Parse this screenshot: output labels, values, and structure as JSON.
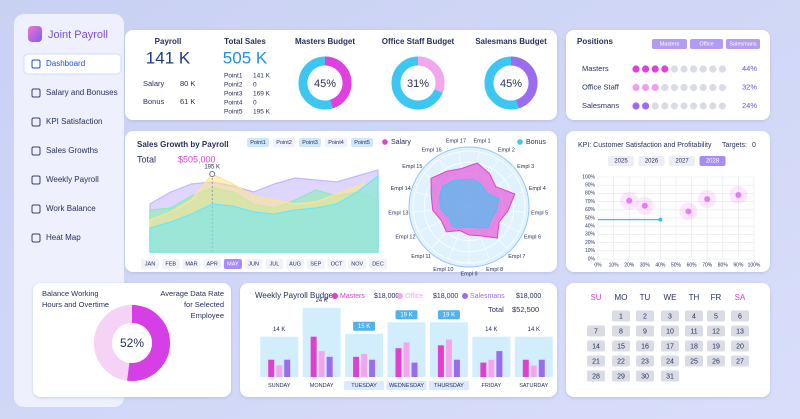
{
  "app": {
    "title": "Joint Payroll"
  },
  "nav": [
    "Dashboard",
    "Salary and Bonuses",
    "KPI Satisfaction",
    "Sales Growths",
    "Weekly Payroll",
    "Work Balance",
    "Heat Map"
  ],
  "summary": {
    "payroll_label": "Payroll",
    "payroll": "141 K",
    "salary_label": "Salary",
    "salary": "80 K",
    "bonus_label": "Bonus",
    "bonus": "61 K",
    "sales_label": "Total Sales",
    "sales": "505 K",
    "points": [
      {
        "label": "Point1",
        "value": "141 K"
      },
      {
        "label": "Point2",
        "value": "0"
      },
      {
        "label": "Point3",
        "value": "169 K"
      },
      {
        "label": "Point4",
        "value": "0"
      },
      {
        "label": "Point5",
        "value": "195 K"
      }
    ]
  },
  "chart_data": [
    {
      "type": "donut",
      "title": "Masters Budget",
      "values": [
        45
      ],
      "value_labels": [
        "45%"
      ],
      "color": "#e23fe0",
      "track_color": "#3cc6f2"
    },
    {
      "type": "donut",
      "title": "Office Staff Budget",
      "values": [
        31
      ],
      "value_labels": [
        "31%"
      ],
      "color": "#f3a6ec",
      "track_color": "#3cc6f2"
    },
    {
      "type": "donut",
      "title": "Salesmans Budget",
      "values": [
        45
      ],
      "value_labels": [
        "45%"
      ],
      "color": "#9b6cf0",
      "track_color": "#3cc6f2"
    },
    {
      "type": "dots",
      "title": "Positions",
      "buttons": [
        "Masters",
        "Office",
        "Salesmans"
      ],
      "categories": [
        "Masters",
        "Office Staff",
        "Salesmans"
      ],
      "values": [
        44,
        32,
        24
      ],
      "value_labels": [
        "44%",
        "32%",
        "24%"
      ],
      "colors": [
        "#e23fe0",
        "#f0a0ea",
        "#9b6cf0"
      ],
      "dot_count": 10
    },
    {
      "type": "area",
      "title": "Sales Growth by Payroll",
      "buttons": [
        "Point1",
        "Point2",
        "Point3",
        "Point4",
        "Point5"
      ],
      "total_label": "Total",
      "total": "$505,000",
      "categories": [
        "JAN",
        "FEB",
        "MAR",
        "APR",
        "MAY",
        "JUN",
        "JUL",
        "AUG",
        "SEP",
        "OCT",
        "NOV",
        "DEC"
      ],
      "highlight_category": "MAY",
      "ylim": [
        0,
        250
      ],
      "series": [
        {
          "color": "#c4b5fd",
          "values": [
            120,
            150,
            170,
            175,
            165,
            150,
            170,
            185,
            180,
            175,
            190,
            205
          ]
        },
        {
          "color": "#86efac",
          "values": [
            105,
            110,
            140,
            160,
            150,
            120,
            110,
            130,
            155,
            140,
            150,
            130
          ]
        },
        {
          "color": "#fde68a",
          "values": [
            80,
            100,
            130,
            195,
            170,
            140,
            130,
            120,
            125,
            145,
            165,
            175
          ],
          "value_labels": [
            null,
            null,
            null,
            "195 K",
            null,
            null,
            null,
            null,
            null,
            null,
            null,
            null
          ]
        },
        {
          "color": "#67e8f9",
          "values": [
            60,
            75,
            95,
            120,
            115,
            100,
            95,
            105,
            110,
            120,
            150,
            190
          ]
        }
      ]
    },
    {
      "type": "radar",
      "ylim": [
        0,
        100
      ],
      "categories": [
        "Empl 1",
        "Empl 2",
        "Empl 3",
        "Empl 4",
        "Empl 5",
        "Empl 6",
        "Empl 7",
        "Empl 8",
        "Empl 9",
        "Empl 10",
        "Empl 11",
        "Empl 12",
        "Empl 13",
        "Empl 14",
        "Empl 15",
        "Empl 16",
        "Empl 17"
      ],
      "series": [
        {
          "name": "Salary",
          "color": "#e23fd0",
          "values": [
            80,
            70,
            60,
            85,
            70,
            60,
            75,
            55,
            50,
            45,
            60,
            55,
            65,
            70,
            85,
            75,
            70
          ]
        },
        {
          "name": "Bonus",
          "color": "#38c8f0",
          "values": [
            50,
            45,
            40,
            55,
            50,
            45,
            50,
            40,
            35,
            40,
            45,
            40,
            50,
            55,
            60,
            55,
            50
          ]
        }
      ]
    },
    {
      "type": "scatter",
      "title": "KPI: Customer Satisfaction and Profitability",
      "targets_label": "Targets:",
      "targets": 0,
      "buttons": [
        "2025",
        "2026",
        "2027",
        "2028"
      ],
      "active_button": "2028",
      "xlim": [
        0,
        100
      ],
      "ylim": [
        0,
        100
      ],
      "grid": true,
      "xticks": [
        {
          "value": 0,
          "label": "0%"
        },
        {
          "value": 10,
          "label": "10%"
        },
        {
          "value": 20,
          "label": "20%"
        },
        {
          "value": 30,
          "label": "30%"
        },
        {
          "value": 40,
          "label": "40%"
        },
        {
          "value": 50,
          "label": "50%"
        },
        {
          "value": 60,
          "label": "60%"
        },
        {
          "value": 70,
          "label": "70%"
        },
        {
          "value": 80,
          "label": "80%"
        },
        {
          "value": 90,
          "label": "90%"
        },
        {
          "value": 100,
          "label": "100%"
        }
      ],
      "yticks": [
        {
          "value": 0,
          "label": "0%"
        },
        {
          "value": 10,
          "label": "10%"
        },
        {
          "value": 20,
          "label": "20%"
        },
        {
          "value": 30,
          "label": "30%"
        },
        {
          "value": 40,
          "label": "40%"
        },
        {
          "value": 50,
          "label": "50%"
        },
        {
          "value": 60,
          "label": "60%"
        },
        {
          "value": 70,
          "label": "70%"
        },
        {
          "value": 80,
          "label": "80%"
        },
        {
          "value": 90,
          "label": "90%"
        },
        {
          "value": 100,
          "label": "100%"
        }
      ],
      "series": [
        {
          "mode": "line",
          "color": "#38bdf8",
          "x": [
            0,
            40
          ],
          "y": [
            48,
            48
          ]
        },
        {
          "mode": "points",
          "color": "#e879f9",
          "x": [
            20,
            30,
            58,
            70,
            90
          ],
          "y": [
            71,
            65,
            58,
            73,
            78
          ]
        }
      ]
    },
    {
      "type": "donut",
      "title": "Balance Working Hours and Overtime",
      "subtitle": "Average Data Rate for Selected Employee",
      "values": [
        52
      ],
      "value_labels": [
        "52%"
      ],
      "color": "#d63fe6",
      "track_color": "#f6d2f6"
    },
    {
      "type": "bar",
      "title": "Weekly Payroll Budget",
      "total_label": "Total",
      "total": "$52,500",
      "categories": [
        "SUNDAY",
        "MONDAY",
        "TUESDAY",
        "WEDNESDAY",
        "THURSDAY",
        "FRIDAY",
        "SATURDAY"
      ],
      "highlight_categories": [
        "TUESDAY",
        "WEDNESDAY",
        "THURSDAY"
      ],
      "values": [
        14,
        24,
        15,
        19,
        19,
        14,
        14
      ],
      "value_labels": [
        "14 K",
        "24 K",
        "15 K",
        "19 K",
        "19 K",
        "14 K",
        "14 K"
      ],
      "color": "#bfe7fb",
      "ylim": [
        0,
        25
      ],
      "series": [
        {
          "name": "Masters",
          "legend_value": "$18,000",
          "color": "#e23fd0",
          "values": [
            6,
            14,
            7,
            10,
            11,
            5,
            6
          ]
        },
        {
          "name": "Office",
          "legend_value": "$18,000",
          "color": "#f3a6ec",
          "values": [
            4,
            9,
            8,
            12,
            13,
            6,
            4
          ]
        },
        {
          "name": "Salesmans",
          "legend_value": "$18,000",
          "color": "#9b6cf0",
          "values": [
            6,
            7,
            6,
            5,
            6,
            9,
            6
          ]
        }
      ]
    }
  ],
  "calendar": {
    "weekdays": [
      "SU",
      "MO",
      "TU",
      "WE",
      "TH",
      "FR",
      "SA"
    ],
    "first_weekday": 1,
    "days": [
      1,
      2,
      3,
      4,
      5,
      6,
      7,
      8,
      9,
      10,
      11,
      12,
      13,
      14,
      15,
      16,
      17,
      18,
      19,
      20,
      21,
      22,
      23,
      24,
      25,
      26,
      27,
      28,
      29,
      30,
      31
    ]
  }
}
